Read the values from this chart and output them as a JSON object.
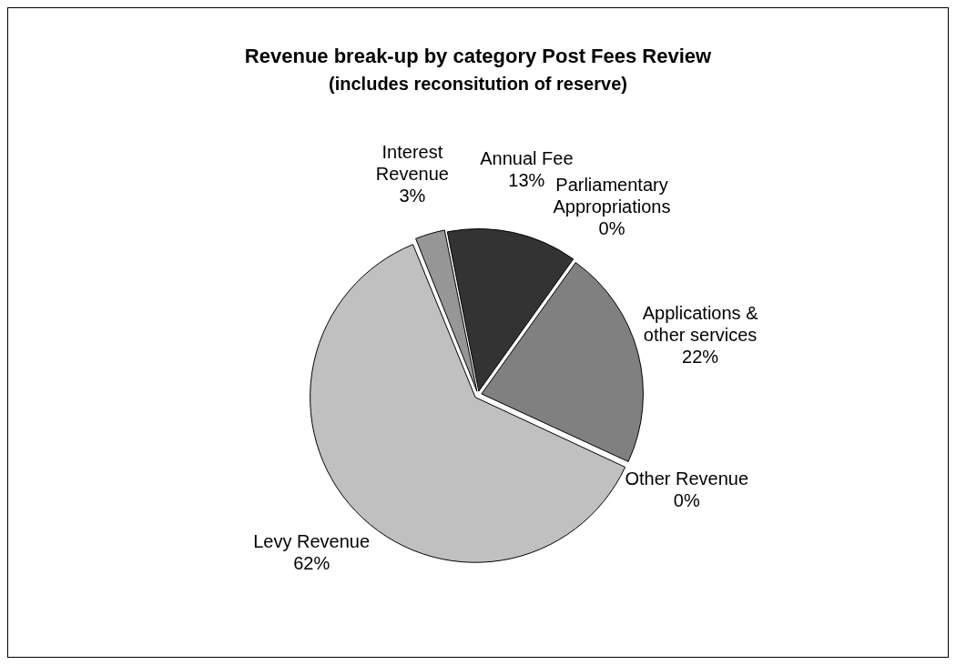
{
  "chart_data": {
    "type": "pie",
    "title": "Revenue break-up by category Post Fees Review",
    "subtitle": "(includes reconsitution of reserve)",
    "categories": [
      "Interest Revenue",
      "Annual Fee",
      "Parliamentary Appropriations",
      "Applications & other services",
      "Other Revenue",
      "Levy Revenue"
    ],
    "values": [
      3,
      13,
      0,
      22,
      0,
      62
    ],
    "value_labels": [
      "3%",
      "13%",
      "0%",
      "22%",
      "0%",
      "62%"
    ],
    "colors": [
      "#969696",
      "#333333",
      "#dddddd",
      "#808080",
      "#eaeaea",
      "#c0c0c0"
    ],
    "legend": false
  }
}
